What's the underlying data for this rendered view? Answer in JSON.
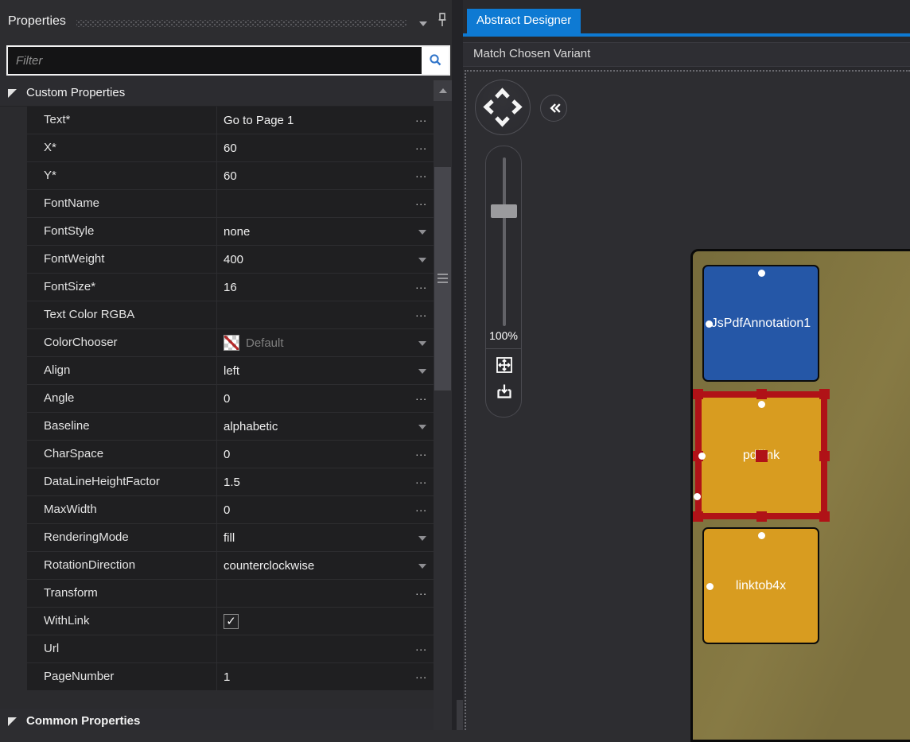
{
  "colors": {
    "accent_blue": "#0e7ad3",
    "box_blue": "#2557a7",
    "box_orange": "#d89c20",
    "selection_red": "#b01217",
    "page_tan": "#7e7240"
  },
  "properties_panel": {
    "title": "Properties",
    "filter": {
      "placeholder": "Filter"
    },
    "group_header": "Custom Properties",
    "footer_group": "Common Properties",
    "ellipsis_label": "...",
    "check_glyph": "✓",
    "rows": [
      {
        "name": "Text*",
        "value": "Go to Page 1",
        "control": "ellipsis"
      },
      {
        "name": "X*",
        "value": "60",
        "control": "ellipsis"
      },
      {
        "name": "Y*",
        "value": "60",
        "control": "ellipsis"
      },
      {
        "name": "FontName",
        "value": "",
        "control": "ellipsis"
      },
      {
        "name": "FontStyle",
        "value": "none",
        "control": "dropdown"
      },
      {
        "name": "FontWeight",
        "value": "400",
        "control": "dropdown"
      },
      {
        "name": "FontSize*",
        "value": "16",
        "control": "ellipsis"
      },
      {
        "name": "Text Color RGBA",
        "value": "",
        "control": "ellipsis"
      },
      {
        "name": "ColorChooser",
        "value": "Default",
        "control": "dropdown",
        "swatch": true,
        "muted": true
      },
      {
        "name": "Align",
        "value": "left",
        "control": "dropdown"
      },
      {
        "name": "Angle",
        "value": "0",
        "control": "ellipsis"
      },
      {
        "name": "Baseline",
        "value": "alphabetic",
        "control": "dropdown"
      },
      {
        "name": "CharSpace",
        "value": "0",
        "control": "ellipsis"
      },
      {
        "name": "DataLineHeightFactor",
        "value": "1.5",
        "control": "ellipsis"
      },
      {
        "name": "MaxWidth",
        "value": "0",
        "control": "ellipsis"
      },
      {
        "name": "RenderingMode",
        "value": "fill",
        "control": "dropdown"
      },
      {
        "name": "RotationDirection",
        "value": "counterclockwise",
        "control": "dropdown"
      },
      {
        "name": "Transform",
        "value": "",
        "control": "ellipsis"
      },
      {
        "name": "WithLink",
        "value": "checked",
        "control": "checkbox"
      },
      {
        "name": "Url",
        "value": "",
        "control": "ellipsis"
      },
      {
        "name": "PageNumber",
        "value": "1",
        "control": "ellipsis"
      }
    ]
  },
  "designer": {
    "tab_label": "Abstract Designer",
    "variant_label": "Match Chosen Variant",
    "zoom_label": "100%",
    "shapes": [
      {
        "label": "JsPdfAnnotation1",
        "fill": "#2557a7",
        "selected": false
      },
      {
        "label": "pdflink",
        "fill": "#d89c20",
        "selected": true
      },
      {
        "label": "linktob4x",
        "fill": "#d89c20",
        "selected": false
      }
    ]
  }
}
